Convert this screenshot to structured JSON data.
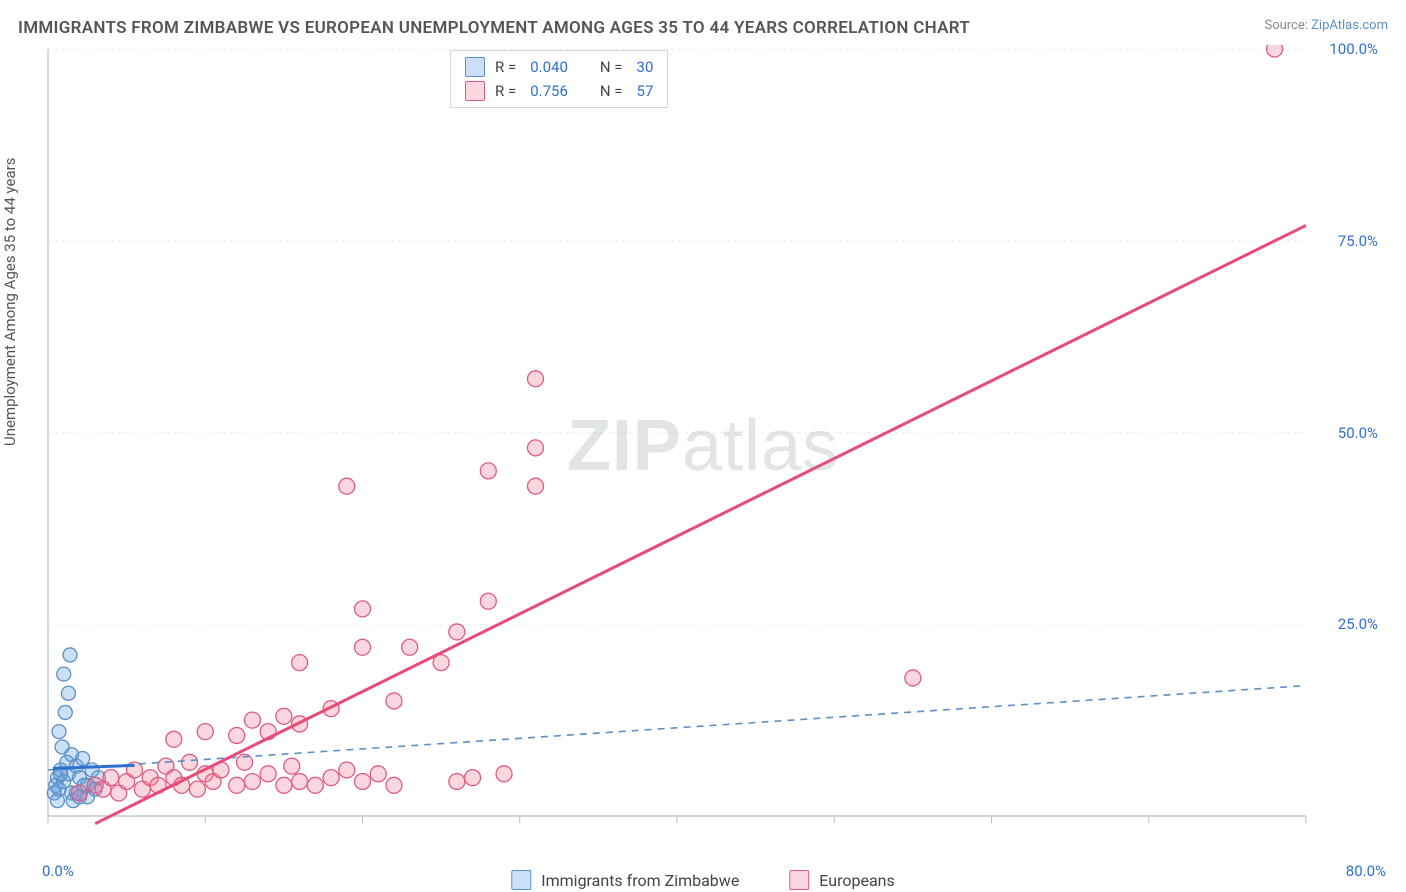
{
  "title": "IMMIGRANTS FROM ZIMBABWE VS EUROPEAN UNEMPLOYMENT AMONG AGES 35 TO 44 YEARS CORRELATION CHART",
  "source_label": "Source: ",
  "source_site": "ZipAtlas.com",
  "ylabel": "Unemployment Among Ages 35 to 44 years",
  "watermark": {
    "strong": "ZIP",
    "rest": "atlas"
  },
  "chart": {
    "type": "scatter",
    "background_color": "#ffffff",
    "grid_color": "#eceef0",
    "axis_color": "#b9bfc6",
    "xlim": [
      0,
      80
    ],
    "ylim": [
      0,
      100
    ],
    "x_ticks": [
      0,
      10,
      20,
      30,
      40,
      50,
      60,
      70,
      80
    ],
    "x_tick_labels": {
      "min": "0.0%",
      "max": "80.0%"
    },
    "y_ticks": [
      0,
      25,
      50,
      75,
      100
    ],
    "y_tick_labels": [
      "0.0%",
      "25.0%",
      "50.0%",
      "75.0%",
      "100.0%"
    ],
    "series": [
      {
        "key": "zimbabwe",
        "label": "Immigrants from Zimbabwe",
        "marker_fill": "rgba(107,163,226,0.35)",
        "marker_stroke": "#5b8fc7",
        "marker_radius": 7,
        "trend": {
          "style": "dashed",
          "color": "#5b8fc7",
          "width": 1.6,
          "x1": 0,
          "y1": 6,
          "x2": 80,
          "y2": 17
        },
        "short_trend": {
          "style": "solid",
          "color": "#2f6fd0",
          "width": 3,
          "x1": 0.3,
          "y1": 6.2,
          "x2": 5.5,
          "y2": 6.6
        },
        "R": "0.040",
        "N": "30",
        "points": [
          [
            0.5,
            4
          ],
          [
            0.6,
            5
          ],
          [
            0.7,
            3.5
          ],
          [
            0.8,
            6
          ],
          [
            1.0,
            4.5
          ],
          [
            1.2,
            7
          ],
          [
            1.3,
            5.5
          ],
          [
            1.5,
            8
          ],
          [
            1.5,
            3
          ],
          [
            1.8,
            6.5
          ],
          [
            2.0,
            5
          ],
          [
            2.2,
            7.5
          ],
          [
            2.5,
            4
          ],
          [
            2.8,
            6
          ],
          [
            0.9,
            9
          ],
          [
            0.7,
            11
          ],
          [
            1.1,
            13.5
          ],
          [
            1.3,
            16
          ],
          [
            1.0,
            18.5
          ],
          [
            1.4,
            21
          ],
          [
            2.5,
            2.5
          ],
          [
            3.0,
            3.5
          ],
          [
            3.2,
            5
          ],
          [
            1.6,
            2
          ],
          [
            1.8,
            3
          ],
          [
            0.4,
            3
          ],
          [
            0.6,
            2
          ],
          [
            2.0,
            2.5
          ],
          [
            2.3,
            4
          ],
          [
            0.8,
            5.5
          ]
        ]
      },
      {
        "key": "europeans",
        "label": "Europeans",
        "marker_fill": "rgba(240,120,150,0.30)",
        "marker_stroke": "#e05a85",
        "marker_radius": 8,
        "trend": {
          "style": "solid",
          "color": "#e84a7a",
          "width": 3,
          "x1": 3,
          "y1": -1,
          "x2": 80,
          "y2": 77
        },
        "R": "0.756",
        "N": "57",
        "points": [
          [
            2,
            3
          ],
          [
            3,
            4
          ],
          [
            3.5,
            3.5
          ],
          [
            4,
            5
          ],
          [
            4.5,
            3
          ],
          [
            5,
            4.5
          ],
          [
            5.5,
            6
          ],
          [
            6,
            3.5
          ],
          [
            6.5,
            5
          ],
          [
            7,
            4
          ],
          [
            7.5,
            6.5
          ],
          [
            8,
            5
          ],
          [
            8.5,
            4
          ],
          [
            9,
            7
          ],
          [
            9.5,
            3.5
          ],
          [
            10,
            5.5
          ],
          [
            10.5,
            4.5
          ],
          [
            11,
            6
          ],
          [
            12,
            4
          ],
          [
            12.5,
            7
          ],
          [
            13,
            4.5
          ],
          [
            14,
            5.5
          ],
          [
            15,
            4
          ],
          [
            15.5,
            6.5
          ],
          [
            16,
            4.5
          ],
          [
            17,
            4
          ],
          [
            18,
            5
          ],
          [
            19,
            6
          ],
          [
            20,
            4.5
          ],
          [
            21,
            5.5
          ],
          [
            22,
            4
          ],
          [
            26,
            4.5
          ],
          [
            27,
            5
          ],
          [
            29,
            5.5
          ],
          [
            8,
            10
          ],
          [
            10,
            11
          ],
          [
            12,
            10.5
          ],
          [
            13,
            12.5
          ],
          [
            14,
            11
          ],
          [
            15,
            13
          ],
          [
            16,
            12
          ],
          [
            18,
            14
          ],
          [
            16,
            20
          ],
          [
            22,
            15
          ],
          [
            20,
            22
          ],
          [
            20,
            27
          ],
          [
            23,
            22
          ],
          [
            25,
            20
          ],
          [
            26,
            24
          ],
          [
            28,
            28
          ],
          [
            19,
            43
          ],
          [
            28,
            45
          ],
          [
            31,
            43
          ],
          [
            31,
            48
          ],
          [
            31,
            57
          ],
          [
            55,
            18
          ],
          [
            78,
            100
          ]
        ]
      }
    ],
    "legend_top": {
      "r_prefix": "R = ",
      "n_prefix": "N = "
    }
  }
}
